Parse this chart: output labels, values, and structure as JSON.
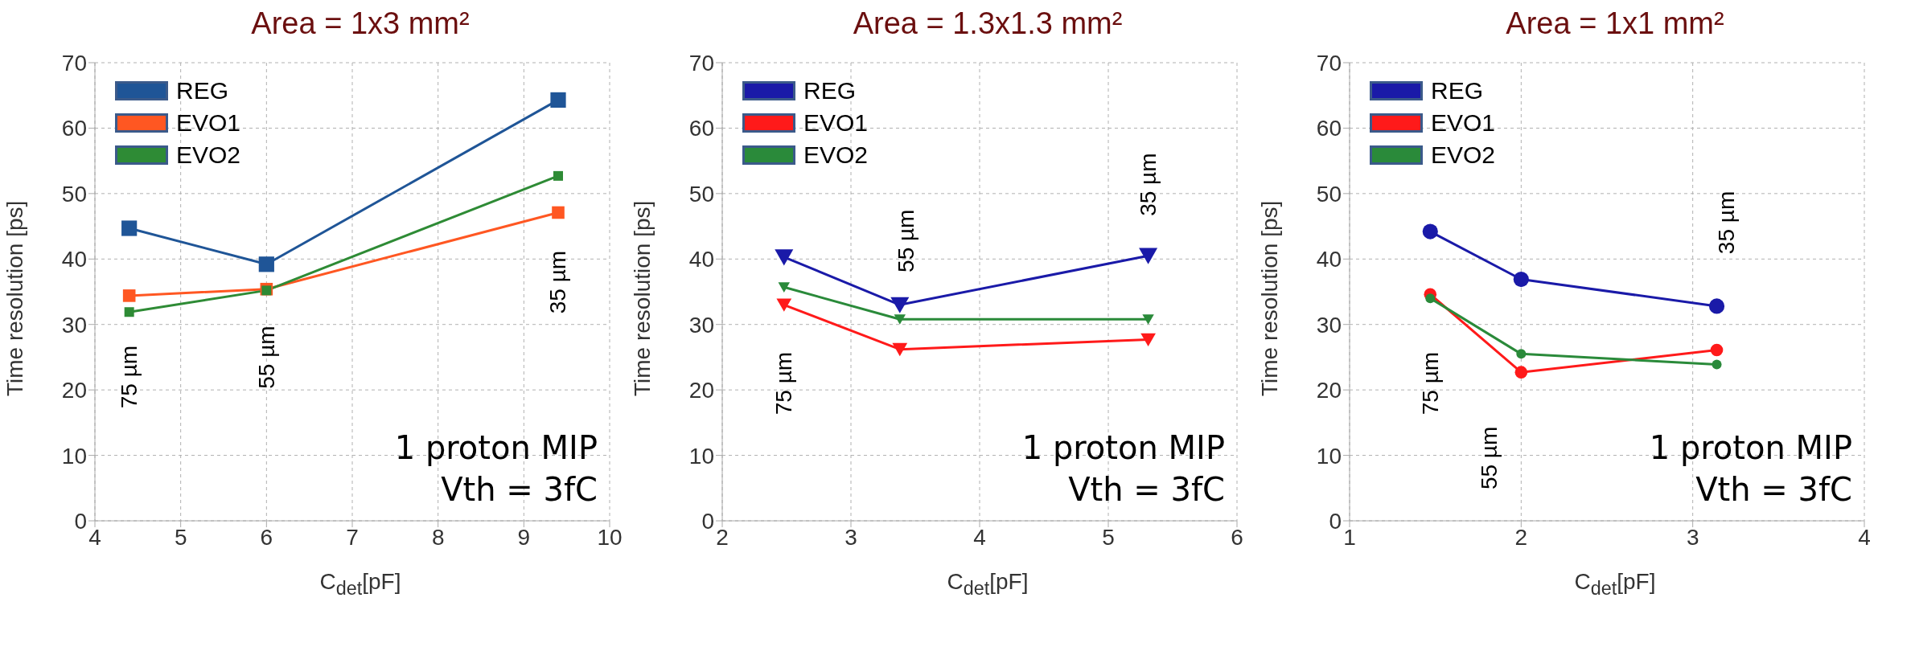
{
  "chart_data": [
    {
      "type": "line",
      "title": "Area = 1x3 mm²",
      "xlabel": "C$_{det}$[pF]",
      "ylabel": "Time resolution [ps]",
      "x": [
        4.4,
        6,
        9.4
      ],
      "xlim": [
        4,
        10
      ],
      "xticks": [
        4,
        5,
        6,
        7,
        8,
        9,
        10
      ],
      "ylim": [
        0,
        70
      ],
      "yticks": [
        0,
        10,
        20,
        30,
        40,
        50,
        60,
        70
      ],
      "grid": true,
      "legend": "top left",
      "marker": "square",
      "series": [
        {
          "name": "REG",
          "color": "#1f5597",
          "values": [
            44.7,
            39.2,
            64.3
          ]
        },
        {
          "name": "EVO1",
          "color": "#ff5722",
          "values": [
            34.4,
            35.4,
            47.1
          ]
        },
        {
          "name": "EVO2",
          "color": "#2e8b35",
          "values": [
            31.9,
            35.2,
            52.7
          ]
        }
      ],
      "annotations": [
        "75 µm",
        "55 µm",
        "35 µm",
        "1 proton MIP",
        "Vth = 3fC"
      ]
    },
    {
      "type": "line",
      "title": "Area = 1.3x1.3 mm²",
      "xlabel": "C$_{det}$[pF]",
      "ylabel": "Time resolution [ps]",
      "x": [
        2.48,
        3.38,
        5.31
      ],
      "xlim": [
        2,
        6
      ],
      "xticks": [
        2,
        3,
        4,
        5,
        6
      ],
      "ylim": [
        0,
        70
      ],
      "yticks": [
        0,
        10,
        20,
        30,
        40,
        50,
        60,
        70
      ],
      "grid": true,
      "legend": "top left",
      "marker": "triangle",
      "series": [
        {
          "name": "REG",
          "color": "#1a1aa8",
          "values": [
            40.3,
            33.0,
            40.5
          ]
        },
        {
          "name": "EVO1",
          "color": "#ff1a1a",
          "values": [
            33.0,
            26.2,
            27.7
          ]
        },
        {
          "name": "EVO2",
          "color": "#2a8a3a",
          "values": [
            35.7,
            30.8,
            30.8
          ]
        }
      ],
      "annotations": [
        "75 µm",
        "55 µm",
        "35 µm",
        "1 proton MIP",
        "Vth = 3fC"
      ]
    },
    {
      "type": "line",
      "title": "Area = 1x1 mm²",
      "xlabel": "C$_{det}$[pF]",
      "ylabel": "Time resolution [ps]",
      "x": [
        1.47,
        2.0,
        3.14
      ],
      "xlim": [
        1,
        4
      ],
      "xticks": [
        1,
        2,
        3,
        4
      ],
      "ylim": [
        0,
        70
      ],
      "yticks": [
        0,
        10,
        20,
        30,
        40,
        50,
        60,
        70
      ],
      "grid": true,
      "legend": "top left",
      "marker": "circle",
      "series": [
        {
          "name": "REG",
          "color": "#1a1aa8",
          "values": [
            44.2,
            36.9,
            32.8
          ]
        },
        {
          "name": "EVO1",
          "color": "#ff1a1a",
          "values": [
            34.6,
            22.7,
            26.1
          ]
        },
        {
          "name": "EVO2",
          "color": "#2a8a3a",
          "values": [
            34.0,
            25.5,
            23.9
          ]
        }
      ],
      "annotations": [
        "75 µm",
        "55 µm",
        "35 µm",
        "1 proton MIP",
        "Vth = 3fC"
      ]
    }
  ]
}
